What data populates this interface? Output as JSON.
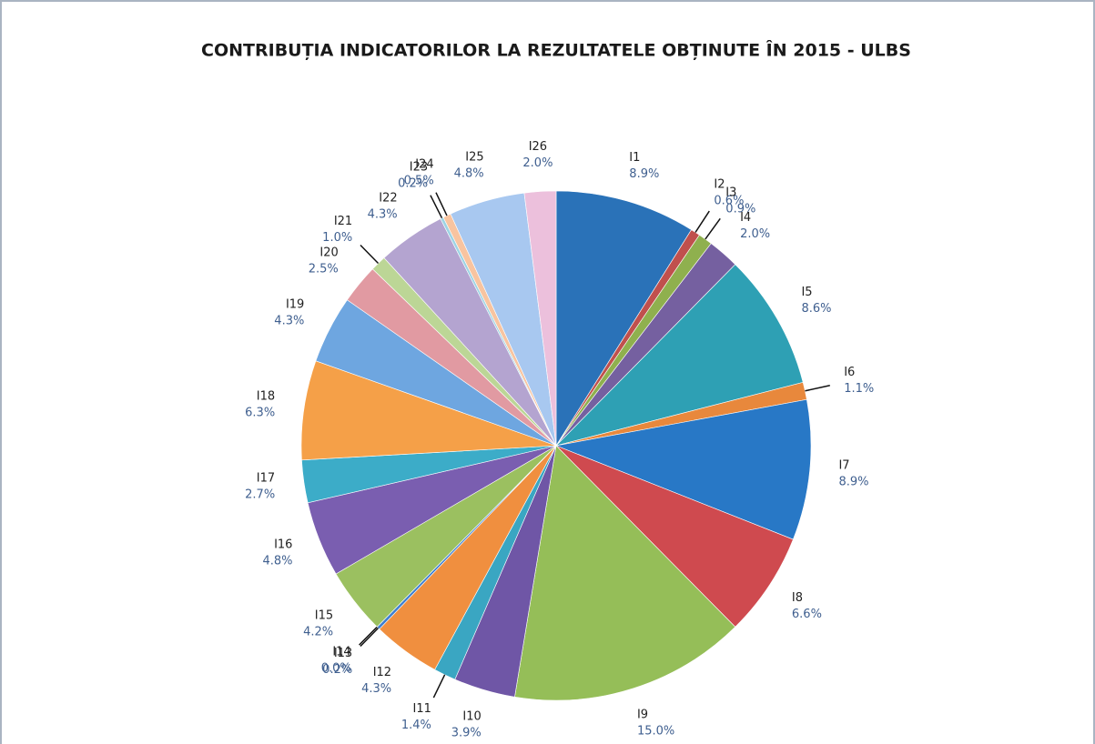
{
  "chart_data": {
    "type": "pie",
    "title": "CONTRIBUȚIA INDICATORILOR LA REZULTATELE OBȚINUTE ÎN 2015 - ULBS",
    "categories": [
      "I1",
      "I2",
      "I3",
      "I4",
      "I5",
      "I6",
      "I7",
      "I8",
      "I9",
      "I10",
      "I11",
      "I12",
      "I13",
      "I14",
      "I15",
      "I16",
      "I17",
      "I18",
      "I19",
      "I20",
      "I21",
      "I22",
      "I23",
      "I24",
      "I25",
      "I26"
    ],
    "values": [
      8.9,
      0.6,
      0.9,
      2.0,
      8.6,
      1.1,
      8.9,
      6.6,
      15.0,
      3.9,
      1.4,
      4.3,
      0.2,
      0.0,
      4.2,
      4.8,
      2.7,
      6.3,
      4.3,
      2.5,
      1.0,
      4.3,
      0.2,
      0.5,
      4.8,
      2.0
    ],
    "value_labels": [
      "8.9%",
      "0.6%",
      "0.9%",
      "2.0%",
      "8.6%",
      "1.1%",
      "8.9%",
      "6.6%",
      "15.0%",
      "3.9%",
      "1.4%",
      "4.3%",
      "0.2%",
      "0.0%",
      "4.2%",
      "4.8%",
      "2.7%",
      "6.3%",
      "4.3%",
      "2.5%",
      "1.0%",
      "4.3%",
      "0.2%",
      "0.5%",
      "4.8%",
      "2.0%"
    ],
    "colors": [
      "#2a72b8",
      "#c0504d",
      "#8fb04e",
      "#7560a0",
      "#2ea0b4",
      "#e8883c",
      "#2878c6",
      "#cf4a4f",
      "#95be58",
      "#6f56a6",
      "#3aa6c2",
      "#f08f3f",
      "#3f7fd0",
      "#d44d50",
      "#9bc060",
      "#7a5eb0",
      "#3cacc8",
      "#f5a048",
      "#6ea6e0",
      "#e19aa2",
      "#bcd696",
      "#b4a4d0",
      "#9ed4e4",
      "#f8c4a0",
      "#a8c8f0",
      "#ecc0dc"
    ]
  }
}
